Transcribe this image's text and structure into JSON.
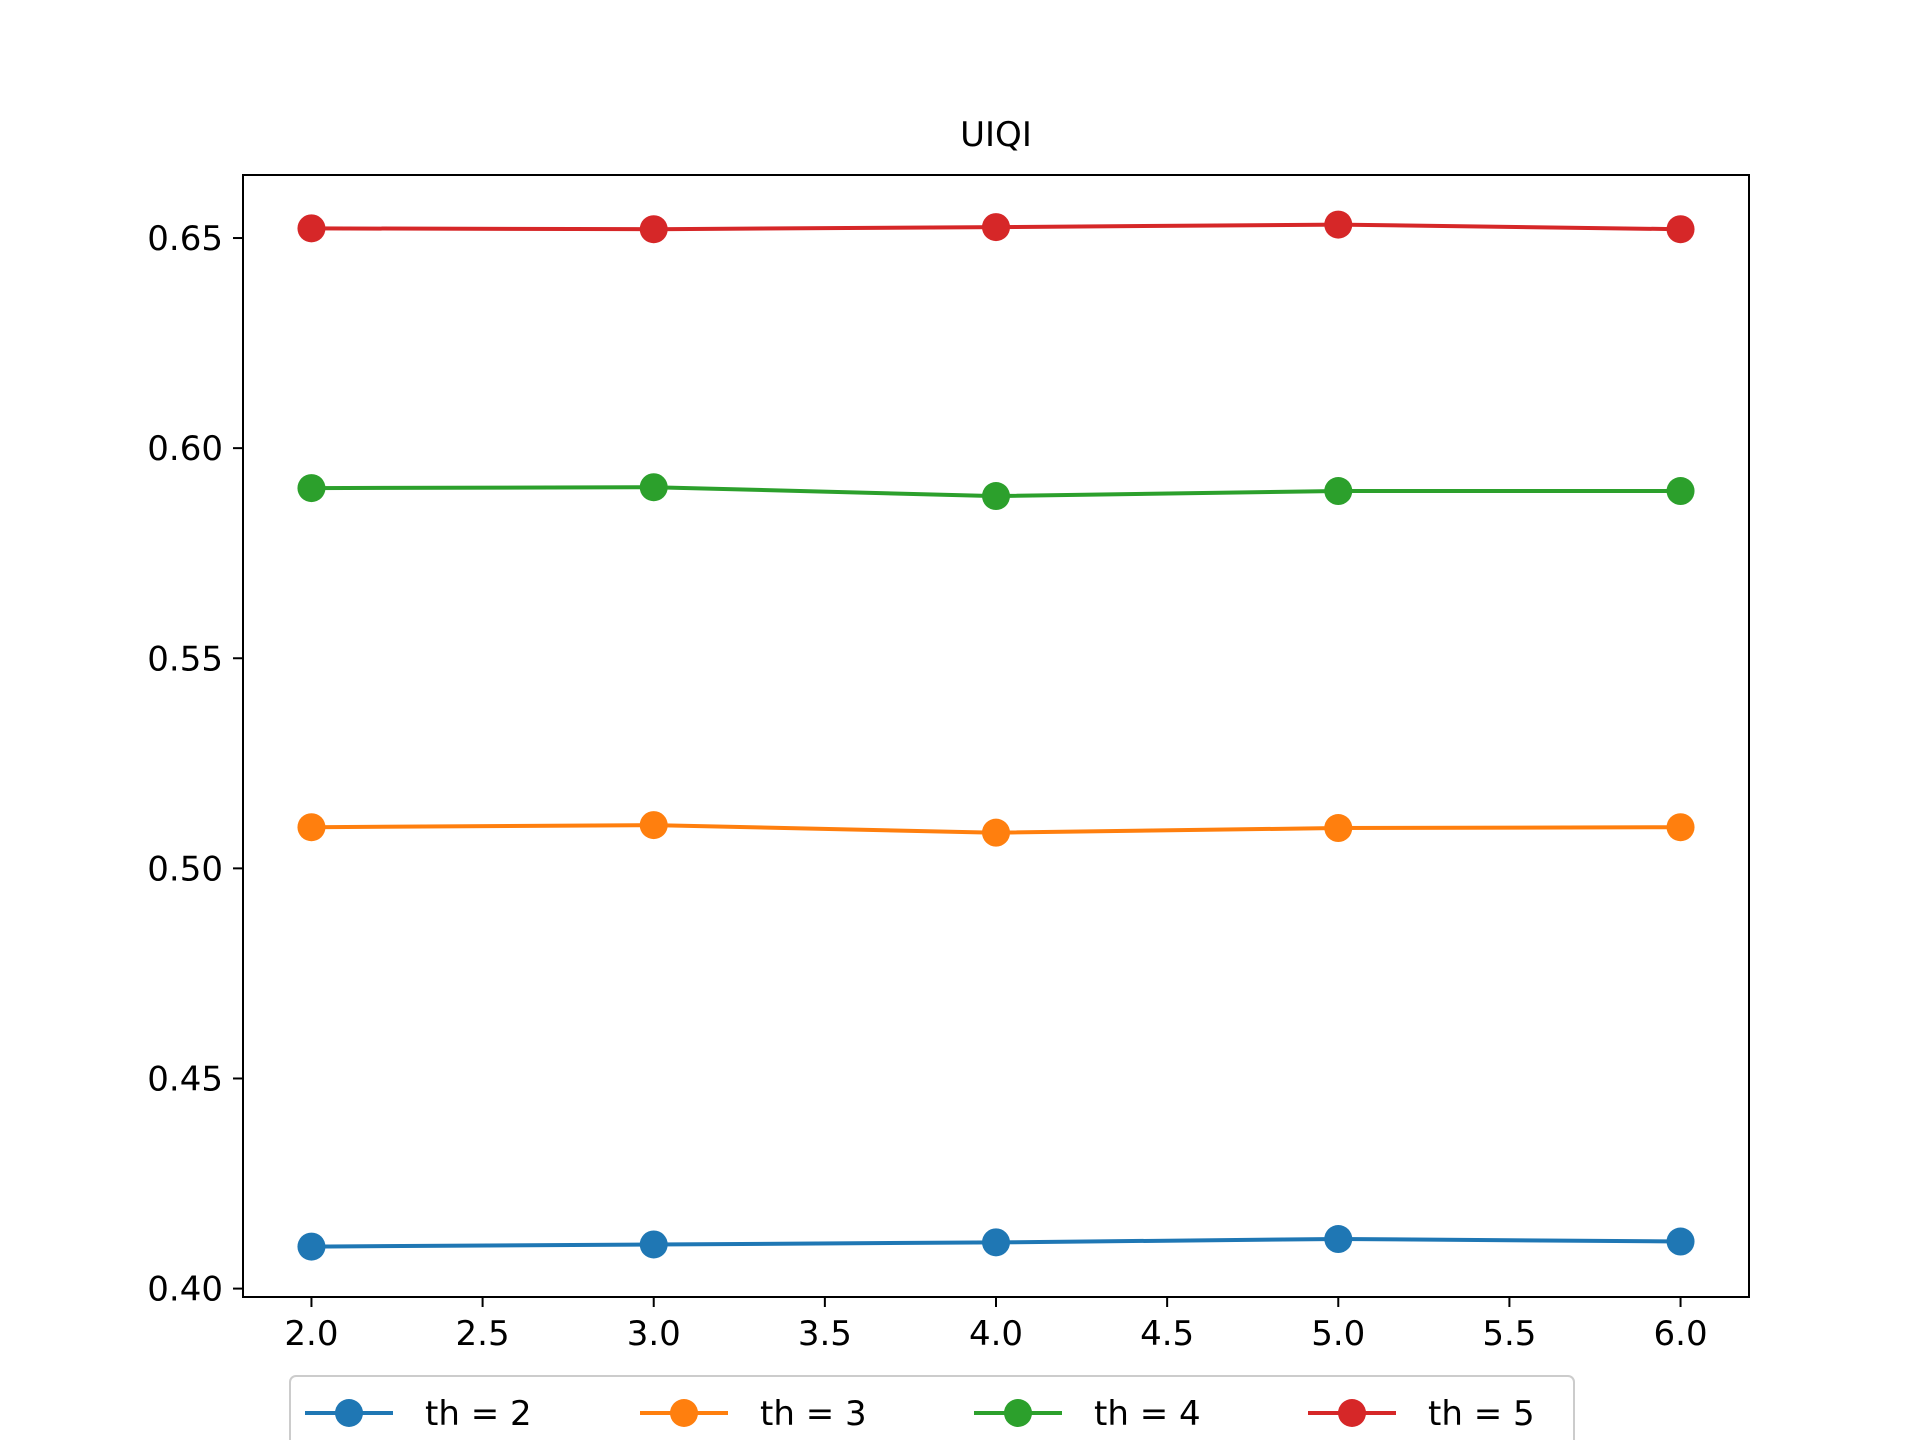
{
  "chart_data": {
    "type": "line",
    "title": "UIQI",
    "xlabel": "",
    "ylabel": "",
    "x": [
      2.0,
      3.0,
      4.0,
      5.0,
      6.0
    ],
    "xlim": [
      1.8,
      6.2
    ],
    "ylim": [
      0.398,
      0.665
    ],
    "xticks": [
      2.0,
      2.5,
      3.0,
      3.5,
      4.0,
      4.5,
      5.0,
      5.5,
      6.0
    ],
    "xtick_labels": [
      "2.0",
      "2.5",
      "3.0",
      "3.5",
      "4.0",
      "4.5",
      "5.0",
      "5.5",
      "6.0"
    ],
    "yticks": [
      0.4,
      0.45,
      0.5,
      0.55,
      0.6,
      0.65
    ],
    "ytick_labels": [
      "0.40",
      "0.45",
      "0.50",
      "0.55",
      "0.60",
      "0.65"
    ],
    "grid": false,
    "legend_position": "bottom-center",
    "series": [
      {
        "name": "th = 2",
        "color": "#1f77b4",
        "values": [
          0.41,
          0.4105,
          0.411,
          0.4118,
          0.4112
        ]
      },
      {
        "name": "th = 3",
        "color": "#ff7f0e",
        "values": [
          0.5098,
          0.5103,
          0.5085,
          0.5096,
          0.5098
        ]
      },
      {
        "name": "th = 4",
        "color": "#2ca02c",
        "values": [
          0.5905,
          0.5907,
          0.5886,
          0.5898,
          0.5898
        ]
      },
      {
        "name": "th = 5",
        "color": "#d62728",
        "values": [
          0.6523,
          0.6521,
          0.6526,
          0.6532,
          0.6521
        ]
      }
    ]
  }
}
